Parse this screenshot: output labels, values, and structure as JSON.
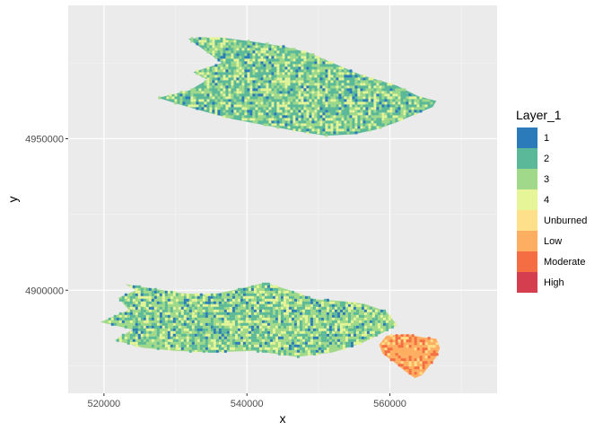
{
  "chart_data": {
    "type": "heatmap",
    "xlabel": "x",
    "ylabel": "y",
    "xlim": [
      515000,
      575000
    ],
    "ylim": [
      4866000,
      4994000
    ],
    "x_ticks": [
      520000,
      540000,
      560000
    ],
    "x_tick_labels": [
      "520000",
      "540000",
      "560000"
    ],
    "y_ticks": [
      4900000,
      4950000
    ],
    "y_tick_labels": [
      "4900000",
      "4950000"
    ],
    "grid": true,
    "legend": {
      "title": "Layer_1",
      "placement": "right",
      "categories": [
        {
          "label": "1",
          "color": "#2b7bba"
        },
        {
          "label": "2",
          "color": "#5bb99a"
        },
        {
          "label": "3",
          "color": "#a0d98a"
        },
        {
          "label": "4",
          "color": "#e6f598"
        },
        {
          "label": "Unburned",
          "color": "#fee08b"
        },
        {
          "label": "Low",
          "color": "#fdae61"
        },
        {
          "label": "Moderate",
          "color": "#f46d43"
        },
        {
          "label": "High",
          "color": "#d53e4f"
        }
      ]
    },
    "regions": [
      {
        "dominant_classes": [
          "2",
          "3",
          "4",
          "1"
        ],
        "outline": [
          [
            531800,
            4983000
          ],
          [
            536000,
            4983500
          ],
          [
            541000,
            4982000
          ],
          [
            545000,
            4980500
          ],
          [
            548500,
            4978500
          ],
          [
            552000,
            4975000
          ],
          [
            556000,
            4971000
          ],
          [
            561000,
            4967500
          ],
          [
            564000,
            4964000
          ],
          [
            566500,
            4962500
          ],
          [
            566000,
            4960500
          ],
          [
            563500,
            4958000
          ],
          [
            561000,
            4955500
          ],
          [
            558000,
            4953000
          ],
          [
            555000,
            4951500
          ],
          [
            551000,
            4951000
          ],
          [
            547000,
            4952500
          ],
          [
            542500,
            4954500
          ],
          [
            538000,
            4956500
          ],
          [
            534000,
            4959000
          ],
          [
            531000,
            4961000
          ],
          [
            527600,
            4963500
          ],
          [
            532000,
            4966000
          ],
          [
            534500,
            4969500
          ],
          [
            532500,
            4972000
          ],
          [
            536500,
            4975000
          ],
          [
            534500,
            4978500
          ],
          [
            533000,
            4981000
          ]
        ]
      },
      {
        "dominant_classes": [
          "3",
          "2",
          "4",
          "1"
        ],
        "outline": [
          [
            523000,
            4902000
          ],
          [
            527000,
            4900500
          ],
          [
            531000,
            4899000
          ],
          [
            535000,
            4898500
          ],
          [
            539000,
            4900500
          ],
          [
            542500,
            4902500
          ],
          [
            546000,
            4900000
          ],
          [
            549500,
            4897000
          ],
          [
            553000,
            4896500
          ],
          [
            556500,
            4895500
          ],
          [
            559500,
            4893000
          ],
          [
            561000,
            4888500
          ],
          [
            559000,
            4886000
          ],
          [
            556000,
            4882500
          ],
          [
            552000,
            4879500
          ],
          [
            547000,
            4878000
          ],
          [
            541000,
            4880000
          ],
          [
            535000,
            4879500
          ],
          [
            530000,
            4880000
          ],
          [
            525500,
            4881000
          ],
          [
            521500,
            4883500
          ],
          [
            524000,
            4887000
          ],
          [
            519500,
            4889500
          ],
          [
            523500,
            4893500
          ],
          [
            522000,
            4897500
          ],
          [
            524500,
            4900000
          ]
        ]
      },
      {
        "dominant_classes": [
          "Low",
          "Moderate",
          "Unburned"
        ],
        "outline": [
          [
            559500,
            4885000
          ],
          [
            562500,
            4885500
          ],
          [
            564500,
            4884500
          ],
          [
            566500,
            4884000
          ],
          [
            567000,
            4881000
          ],
          [
            566500,
            4878000
          ],
          [
            565500,
            4875000
          ],
          [
            564500,
            4872000
          ],
          [
            563500,
            4871000
          ],
          [
            562000,
            4873500
          ],
          [
            560500,
            4876500
          ],
          [
            559000,
            4879000
          ],
          [
            558500,
            4882000
          ]
        ]
      }
    ]
  }
}
